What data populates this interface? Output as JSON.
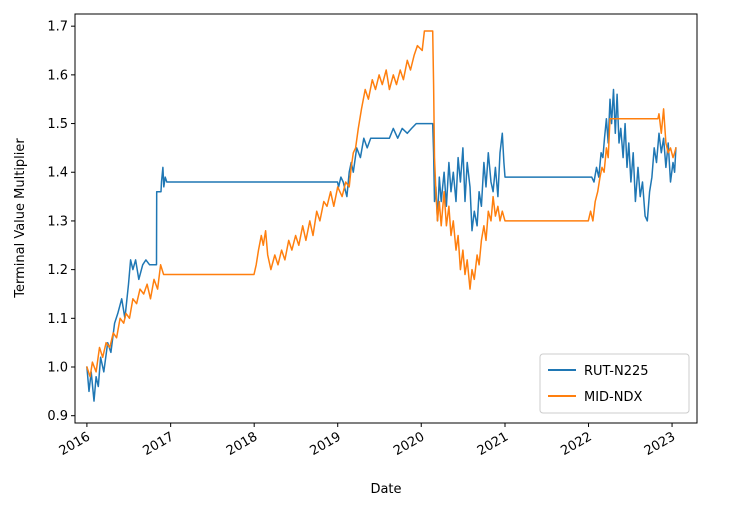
{
  "chart_data": {
    "type": "line",
    "title": "",
    "xlabel": "Date",
    "ylabel": "Terminal Value Multiplier",
    "x_ticks": [
      "2016",
      "2017",
      "2018",
      "2019",
      "2020",
      "2021",
      "2022",
      "2023"
    ],
    "y_ticks": [
      "0.9",
      "1.0",
      "1.1",
      "1.2",
      "1.3",
      "1.4",
      "1.5",
      "1.6",
      "1.7"
    ],
    "xlim": [
      "2015-11-10",
      "2023-04-20"
    ],
    "ylim": [
      0.885,
      1.725
    ],
    "grid": false,
    "legend": "lower right",
    "series": [
      {
        "name": "RUT-N225",
        "color": "#1f77b4",
        "points": [
          [
            "2016-01-01",
            1.0
          ],
          [
            "2016-01-10",
            0.95
          ],
          [
            "2016-01-20",
            0.99
          ],
          [
            "2016-02-01",
            0.93
          ],
          [
            "2016-02-10",
            0.98
          ],
          [
            "2016-02-20",
            0.96
          ],
          [
            "2016-03-01",
            1.02
          ],
          [
            "2016-03-15",
            0.99
          ],
          [
            "2016-04-01",
            1.05
          ],
          [
            "2016-04-15",
            1.03
          ],
          [
            "2016-05-01",
            1.09
          ],
          [
            "2016-05-15",
            1.11
          ],
          [
            "2016-06-01",
            1.14
          ],
          [
            "2016-06-15",
            1.1
          ],
          [
            "2016-07-01",
            1.17
          ],
          [
            "2016-07-10",
            1.22
          ],
          [
            "2016-07-20",
            1.2
          ],
          [
            "2016-08-01",
            1.22
          ],
          [
            "2016-08-15",
            1.18
          ],
          [
            "2016-09-01",
            1.21
          ],
          [
            "2016-09-15",
            1.22
          ],
          [
            "2016-10-01",
            1.21
          ],
          [
            "2016-10-31",
            1.21
          ],
          [
            "2016-11-01",
            1.36
          ],
          [
            "2016-11-20",
            1.36
          ],
          [
            "2016-11-22",
            1.38
          ],
          [
            "2016-11-28",
            1.41
          ],
          [
            "2016-12-02",
            1.37
          ],
          [
            "2016-12-08",
            1.39
          ],
          [
            "2016-12-15",
            1.38
          ],
          [
            "2018-12-31",
            1.38
          ],
          [
            "2019-01-05",
            1.37
          ],
          [
            "2019-01-15",
            1.39
          ],
          [
            "2019-01-25",
            1.38
          ],
          [
            "2019-02-10",
            1.35
          ],
          [
            "2019-02-20",
            1.4
          ],
          [
            "2019-03-01",
            1.42
          ],
          [
            "2019-03-10",
            1.4
          ],
          [
            "2019-03-25",
            1.45
          ],
          [
            "2019-04-10",
            1.43
          ],
          [
            "2019-04-25",
            1.47
          ],
          [
            "2019-05-10",
            1.45
          ],
          [
            "2019-05-25",
            1.47
          ],
          [
            "2019-06-15",
            1.47
          ],
          [
            "2019-08-01",
            1.47
          ],
          [
            "2019-08-15",
            1.47
          ],
          [
            "2019-09-01",
            1.49
          ],
          [
            "2019-09-20",
            1.47
          ],
          [
            "2019-10-10",
            1.49
          ],
          [
            "2019-11-01",
            1.48
          ],
          [
            "2019-11-20",
            1.49
          ],
          [
            "2019-12-10",
            1.5
          ],
          [
            "2020-02-20",
            1.5
          ],
          [
            "2020-02-24",
            1.44
          ],
          [
            "2020-02-28",
            1.34
          ],
          [
            "2020-03-05",
            1.37
          ],
          [
            "2020-03-12",
            1.3
          ],
          [
            "2020-03-20",
            1.39
          ],
          [
            "2020-03-28",
            1.34
          ],
          [
            "2020-04-10",
            1.4
          ],
          [
            "2020-04-20",
            1.33
          ],
          [
            "2020-05-01",
            1.42
          ],
          [
            "2020-05-10",
            1.36
          ],
          [
            "2020-05-20",
            1.4
          ],
          [
            "2020-06-01",
            1.34
          ],
          [
            "2020-06-10",
            1.43
          ],
          [
            "2020-06-20",
            1.38
          ],
          [
            "2020-07-01",
            1.45
          ],
          [
            "2020-07-10",
            1.34
          ],
          [
            "2020-07-20",
            1.42
          ],
          [
            "2020-08-01",
            1.37
          ],
          [
            "2020-08-10",
            1.28
          ],
          [
            "2020-08-20",
            1.32
          ],
          [
            "2020-09-01",
            1.29
          ],
          [
            "2020-09-10",
            1.36
          ],
          [
            "2020-09-20",
            1.33
          ],
          [
            "2020-10-01",
            1.42
          ],
          [
            "2020-10-10",
            1.37
          ],
          [
            "2020-10-20",
            1.44
          ],
          [
            "2020-11-01",
            1.38
          ],
          [
            "2020-11-10",
            1.36
          ],
          [
            "2020-11-20",
            1.41
          ],
          [
            "2020-12-01",
            1.35
          ],
          [
            "2020-12-10",
            1.44
          ],
          [
            "2020-12-20",
            1.48
          ],
          [
            "2020-12-27",
            1.42
          ],
          [
            "2021-01-01",
            1.39
          ],
          [
            "2022-01-15",
            1.39
          ],
          [
            "2022-01-25",
            1.38
          ],
          [
            "2022-02-05",
            1.41
          ],
          [
            "2022-02-15",
            1.39
          ],
          [
            "2022-02-25",
            1.44
          ],
          [
            "2022-03-05",
            1.43
          ],
          [
            "2022-03-12",
            1.47
          ],
          [
            "2022-03-20",
            1.51
          ],
          [
            "2022-03-28",
            1.46
          ],
          [
            "2022-04-05",
            1.55
          ],
          [
            "2022-04-12",
            1.5
          ],
          [
            "2022-04-20",
            1.57
          ],
          [
            "2022-04-28",
            1.48
          ],
          [
            "2022-05-06",
            1.56
          ],
          [
            "2022-05-14",
            1.46
          ],
          [
            "2022-05-22",
            1.49
          ],
          [
            "2022-06-01",
            1.43
          ],
          [
            "2022-06-10",
            1.5
          ],
          [
            "2022-06-18",
            1.41
          ],
          [
            "2022-06-26",
            1.46
          ],
          [
            "2022-07-05",
            1.38
          ],
          [
            "2022-07-15",
            1.44
          ],
          [
            "2022-07-25",
            1.34
          ],
          [
            "2022-08-05",
            1.41
          ],
          [
            "2022-08-15",
            1.35
          ],
          [
            "2022-08-25",
            1.38
          ],
          [
            "2022-09-05",
            1.31
          ],
          [
            "2022-09-15",
            1.3
          ],
          [
            "2022-09-25",
            1.36
          ],
          [
            "2022-10-05",
            1.39
          ],
          [
            "2022-10-15",
            1.45
          ],
          [
            "2022-10-25",
            1.42
          ],
          [
            "2022-11-05",
            1.48
          ],
          [
            "2022-11-15",
            1.44
          ],
          [
            "2022-11-25",
            1.47
          ],
          [
            "2022-12-05",
            1.41
          ],
          [
            "2022-12-15",
            1.46
          ],
          [
            "2022-12-25",
            1.38
          ],
          [
            "2023-01-05",
            1.42
          ],
          [
            "2023-01-12",
            1.4
          ],
          [
            "2023-01-18",
            1.45
          ]
        ]
      },
      {
        "name": "MID-NDX",
        "color": "#ff7f0e",
        "points": [
          [
            "2016-01-01",
            1.0
          ],
          [
            "2016-01-15",
            0.98
          ],
          [
            "2016-01-25",
            1.01
          ],
          [
            "2016-02-10",
            0.99
          ],
          [
            "2016-02-25",
            1.04
          ],
          [
            "2016-03-10",
            1.02
          ],
          [
            "2016-03-25",
            1.05
          ],
          [
            "2016-04-10",
            1.04
          ],
          [
            "2016-04-25",
            1.07
          ],
          [
            "2016-05-10",
            1.06
          ],
          [
            "2016-05-25",
            1.1
          ],
          [
            "2016-06-10",
            1.09
          ],
          [
            "2016-06-20",
            1.11
          ],
          [
            "2016-07-05",
            1.1
          ],
          [
            "2016-07-20",
            1.14
          ],
          [
            "2016-08-05",
            1.13
          ],
          [
            "2016-08-20",
            1.16
          ],
          [
            "2016-09-05",
            1.15
          ],
          [
            "2016-09-20",
            1.17
          ],
          [
            "2016-10-05",
            1.14
          ],
          [
            "2016-10-20",
            1.18
          ],
          [
            "2016-11-05",
            1.16
          ],
          [
            "2016-11-18",
            1.21
          ],
          [
            "2016-12-01",
            1.19
          ],
          [
            "2016-12-20",
            1.19
          ],
          [
            "2017-12-31",
            1.19
          ],
          [
            "2018-01-10",
            1.21
          ],
          [
            "2018-01-20",
            1.24
          ],
          [
            "2018-02-01",
            1.27
          ],
          [
            "2018-02-10",
            1.25
          ],
          [
            "2018-02-20",
            1.28
          ],
          [
            "2018-03-01",
            1.23
          ],
          [
            "2018-03-15",
            1.2
          ],
          [
            "2018-04-01",
            1.23
          ],
          [
            "2018-04-15",
            1.21
          ],
          [
            "2018-05-01",
            1.24
          ],
          [
            "2018-05-15",
            1.22
          ],
          [
            "2018-06-01",
            1.26
          ],
          [
            "2018-06-15",
            1.24
          ],
          [
            "2018-07-01",
            1.27
          ],
          [
            "2018-07-15",
            1.25
          ],
          [
            "2018-08-01",
            1.29
          ],
          [
            "2018-08-15",
            1.26
          ],
          [
            "2018-09-01",
            1.3
          ],
          [
            "2018-09-15",
            1.27
          ],
          [
            "2018-10-01",
            1.32
          ],
          [
            "2018-10-15",
            1.3
          ],
          [
            "2018-11-01",
            1.34
          ],
          [
            "2018-11-15",
            1.33
          ],
          [
            "2018-12-01",
            1.36
          ],
          [
            "2018-12-15",
            1.33
          ],
          [
            "2019-01-01",
            1.37
          ],
          [
            "2019-01-20",
            1.35
          ],
          [
            "2019-02-05",
            1.38
          ],
          [
            "2019-02-20",
            1.37
          ],
          [
            "2019-03-01",
            1.41
          ],
          [
            "2019-03-10",
            1.44
          ],
          [
            "2019-03-20",
            1.45
          ],
          [
            "2019-04-01",
            1.49
          ],
          [
            "2019-04-15",
            1.53
          ],
          [
            "2019-05-01",
            1.57
          ],
          [
            "2019-05-15",
            1.55
          ],
          [
            "2019-06-01",
            1.59
          ],
          [
            "2019-06-15",
            1.57
          ],
          [
            "2019-07-01",
            1.6
          ],
          [
            "2019-07-15",
            1.58
          ],
          [
            "2019-08-01",
            1.61
          ],
          [
            "2019-08-15",
            1.57
          ],
          [
            "2019-09-01",
            1.6
          ],
          [
            "2019-09-15",
            1.58
          ],
          [
            "2019-10-01",
            1.61
          ],
          [
            "2019-10-15",
            1.59
          ],
          [
            "2019-11-01",
            1.63
          ],
          [
            "2019-11-15",
            1.61
          ],
          [
            "2019-12-01",
            1.64
          ],
          [
            "2019-12-15",
            1.66
          ],
          [
            "2020-01-05",
            1.65
          ],
          [
            "2020-01-15",
            1.69
          ],
          [
            "2020-02-20",
            1.69
          ],
          [
            "2020-02-24",
            1.58
          ],
          [
            "2020-02-28",
            1.43
          ],
          [
            "2020-03-05",
            1.36
          ],
          [
            "2020-03-12",
            1.3
          ],
          [
            "2020-03-20",
            1.34
          ],
          [
            "2020-03-28",
            1.29
          ],
          [
            "2020-04-10",
            1.36
          ],
          [
            "2020-04-20",
            1.29
          ],
          [
            "2020-05-01",
            1.33
          ],
          [
            "2020-05-10",
            1.27
          ],
          [
            "2020-05-20",
            1.3
          ],
          [
            "2020-06-01",
            1.24
          ],
          [
            "2020-06-10",
            1.27
          ],
          [
            "2020-06-20",
            1.2
          ],
          [
            "2020-07-01",
            1.24
          ],
          [
            "2020-07-10",
            1.19
          ],
          [
            "2020-07-20",
            1.22
          ],
          [
            "2020-08-01",
            1.16
          ],
          [
            "2020-08-10",
            1.2
          ],
          [
            "2020-08-20",
            1.18
          ],
          [
            "2020-09-01",
            1.23
          ],
          [
            "2020-09-10",
            1.21
          ],
          [
            "2020-09-20",
            1.26
          ],
          [
            "2020-10-01",
            1.29
          ],
          [
            "2020-10-10",
            1.26
          ],
          [
            "2020-10-20",
            1.32
          ],
          [
            "2020-11-01",
            1.3
          ],
          [
            "2020-11-10",
            1.35
          ],
          [
            "2020-11-20",
            1.31
          ],
          [
            "2020-12-01",
            1.33
          ],
          [
            "2020-12-10",
            1.3
          ],
          [
            "2020-12-20",
            1.32
          ],
          [
            "2021-01-01",
            1.3
          ],
          [
            "2021-12-31",
            1.3
          ],
          [
            "2022-01-10",
            1.32
          ],
          [
            "2022-01-20",
            1.3
          ],
          [
            "2022-01-30",
            1.34
          ],
          [
            "2022-02-10",
            1.36
          ],
          [
            "2022-02-20",
            1.39
          ],
          [
            "2022-03-01",
            1.41
          ],
          [
            "2022-03-10",
            1.4
          ],
          [
            "2022-03-20",
            1.45
          ],
          [
            "2022-03-28",
            1.43
          ],
          [
            "2022-04-05",
            1.51
          ],
          [
            "2022-10-31",
            1.51
          ],
          [
            "2022-11-05",
            1.52
          ],
          [
            "2022-11-15",
            1.48
          ],
          [
            "2022-11-25",
            1.53
          ],
          [
            "2022-12-05",
            1.46
          ],
          [
            "2022-12-15",
            1.44
          ],
          [
            "2022-12-25",
            1.45
          ],
          [
            "2023-01-05",
            1.43
          ],
          [
            "2023-01-12",
            1.44
          ],
          [
            "2023-01-18",
            1.45
          ]
        ]
      }
    ]
  }
}
